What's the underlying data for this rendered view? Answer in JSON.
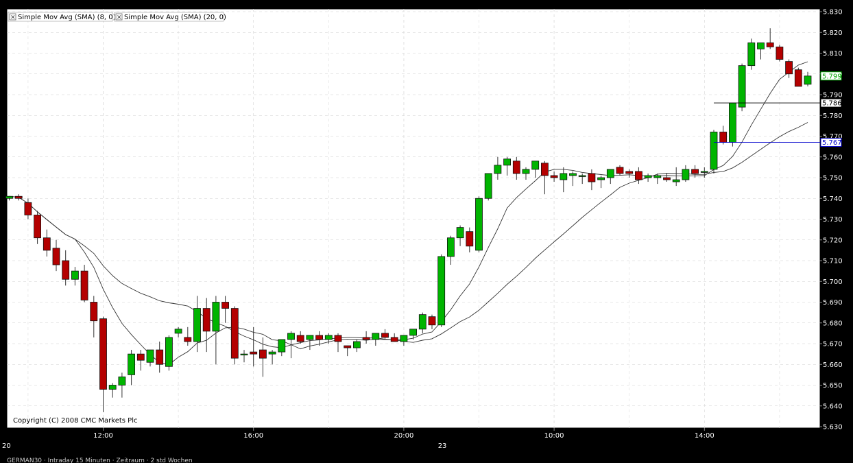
{
  "chart_data": {
    "type": "candlestick",
    "legend": [
      {
        "label": "Simple Mov Avg (SMA) (8, 0)"
      },
      {
        "label": "Simple Mov Avg (SMA) (20, 0)"
      }
    ],
    "copyright": "Copyright (C) 2008 CMC Markets Plc",
    "footer": "GERMAN30 · Intraday 15 Minuten · Zeitraum · 2 std Wochen",
    "ylim": [
      5.63,
      5.83
    ],
    "y_ticks": [
      "5.830",
      "5.820",
      "5.810",
      "5.800",
      "5.790",
      "5.780",
      "5.770",
      "5.760",
      "5.750",
      "5.740",
      "5.730",
      "5.720",
      "5.710",
      "5.700",
      "5.690",
      "5.680",
      "5.670",
      "5.660",
      "5.650",
      "5.640",
      "5.630"
    ],
    "x_time_labels": [
      {
        "label": "12:00",
        "index": 10
      },
      {
        "label": "16:00",
        "index": 26
      },
      {
        "label": "20:00",
        "index": 42
      },
      {
        "label": "10:00",
        "index": 58
      },
      {
        "label": "14:00",
        "index": 74
      }
    ],
    "x_date_labels": [
      {
        "label": "20",
        "index": -0.3
      },
      {
        "label": "23",
        "index": 46.1
      }
    ],
    "price_tags": [
      {
        "label": "5.799",
        "value": 5.799,
        "color": "#00aa00"
      },
      {
        "label": "5.786",
        "value": 5.786,
        "color": "#000000"
      },
      {
        "label": "5.767",
        "value": 5.767,
        "color": "#0000cc"
      }
    ],
    "ref_lines": [
      {
        "value": 5.786,
        "from_index": 75,
        "color": "#000000"
      },
      {
        "value": 5.767,
        "from_index": 75,
        "color": "#0000cc"
      }
    ],
    "candles": [
      [
        5.74,
        5.741,
        5.739,
        5.741
      ],
      [
        5.741,
        5.742,
        5.739,
        5.74
      ],
      [
        5.738,
        5.74,
        5.73,
        5.732
      ],
      [
        5.732,
        5.734,
        5.718,
        5.721
      ],
      [
        5.721,
        5.725,
        5.712,
        5.715
      ],
      [
        5.716,
        5.72,
        5.705,
        5.708
      ],
      [
        5.71,
        5.715,
        5.698,
        5.701
      ],
      [
        5.701,
        5.707,
        5.698,
        5.705
      ],
      [
        5.705,
        5.708,
        5.69,
        5.691
      ],
      [
        5.69,
        5.693,
        5.673,
        5.681
      ],
      [
        5.682,
        5.683,
        5.637,
        5.648
      ],
      [
        5.648,
        5.651,
        5.644,
        5.65
      ],
      [
        5.65,
        5.656,
        5.644,
        5.654
      ],
      [
        5.655,
        5.667,
        5.65,
        5.665
      ],
      [
        5.665,
        5.667,
        5.657,
        5.662
      ],
      [
        5.661,
        5.667,
        5.659,
        5.667
      ],
      [
        5.667,
        5.671,
        5.656,
        5.66
      ],
      [
        5.659,
        5.674,
        5.657,
        5.673
      ],
      [
        5.675,
        5.678,
        5.673,
        5.677
      ],
      [
        5.673,
        5.678,
        5.669,
        5.671
      ],
      [
        5.671,
        5.693,
        5.666,
        5.687
      ],
      [
        5.687,
        5.692,
        5.666,
        5.676
      ],
      [
        5.676,
        5.693,
        5.66,
        5.69
      ],
      [
        5.69,
        5.693,
        5.68,
        5.687
      ],
      [
        5.687,
        5.688,
        5.66,
        5.663
      ],
      [
        5.665,
        5.667,
        5.661,
        5.665
      ],
      [
        5.666,
        5.678,
        5.659,
        5.665
      ],
      [
        5.667,
        5.673,
        5.654,
        5.663
      ],
      [
        5.665,
        5.667,
        5.66,
        5.666
      ],
      [
        5.666,
        5.671,
        5.664,
        5.672
      ],
      [
        5.672,
        5.676,
        5.663,
        5.675
      ],
      [
        5.674,
        5.676,
        5.67,
        5.671
      ],
      [
        5.672,
        5.674,
        5.667,
        5.674
      ],
      [
        5.674,
        5.676,
        5.669,
        5.672
      ],
      [
        5.672,
        5.675,
        5.67,
        5.674
      ],
      [
        5.674,
        5.675,
        5.666,
        5.671
      ],
      [
        5.669,
        5.669,
        5.664,
        5.668
      ],
      [
        5.668,
        5.672,
        5.666,
        5.671
      ],
      [
        5.673,
        5.676,
        5.67,
        5.672
      ],
      [
        5.672,
        5.675,
        5.669,
        5.675
      ],
      [
        5.675,
        5.677,
        5.672,
        5.673
      ],
      [
        5.673,
        5.675,
        5.671,
        5.671
      ],
      [
        5.671,
        5.673,
        5.669,
        5.674
      ],
      [
        5.674,
        5.677,
        5.672,
        5.677
      ],
      [
        5.677,
        5.685,
        5.675,
        5.684
      ],
      [
        5.683,
        5.684,
        5.677,
        5.679
      ],
      [
        5.679,
        5.713,
        5.678,
        5.712
      ],
      [
        5.712,
        5.722,
        5.708,
        5.721
      ],
      [
        5.721,
        5.727,
        5.717,
        5.726
      ],
      [
        5.724,
        5.726,
        5.714,
        5.717
      ],
      [
        5.715,
        5.741,
        5.714,
        5.74
      ],
      [
        5.74,
        5.752,
        5.739,
        5.752
      ],
      [
        5.752,
        5.76,
        5.749,
        5.756
      ],
      [
        5.756,
        5.76,
        5.751,
        5.759
      ],
      [
        5.758,
        5.76,
        5.749,
        5.752
      ],
      [
        5.752,
        5.755,
        5.749,
        5.754
      ],
      [
        5.754,
        5.758,
        5.75,
        5.758
      ],
      [
        5.757,
        5.758,
        5.742,
        5.751
      ],
      [
        5.751,
        5.753,
        5.748,
        5.75
      ],
      [
        5.749,
        5.755,
        5.743,
        5.752
      ],
      [
        5.751,
        5.753,
        5.746,
        5.752
      ],
      [
        5.751,
        5.752,
        5.747,
        5.751
      ],
      [
        5.752,
        5.754,
        5.744,
        5.748
      ],
      [
        5.749,
        5.751,
        5.745,
        5.75
      ],
      [
        5.75,
        5.752,
        5.747,
        5.754
      ],
      [
        5.755,
        5.756,
        5.751,
        5.752
      ],
      [
        5.753,
        5.754,
        5.75,
        5.752
      ],
      [
        5.753,
        5.755,
        5.747,
        5.749
      ],
      [
        5.75,
        5.752,
        5.748,
        5.751
      ],
      [
        5.75,
        5.752,
        5.747,
        5.751
      ],
      [
        5.75,
        5.752,
        5.748,
        5.749
      ],
      [
        5.748,
        5.755,
        5.746,
        5.749
      ],
      [
        5.749,
        5.756,
        5.748,
        5.754
      ],
      [
        5.754,
        5.756,
        5.75,
        5.752
      ],
      [
        5.753,
        5.755,
        5.75,
        5.753
      ],
      [
        5.754,
        5.773,
        5.752,
        5.772
      ],
      [
        5.772,
        5.775,
        5.766,
        5.767
      ],
      [
        5.767,
        5.786,
        5.765,
        5.786
      ],
      [
        5.784,
        5.805,
        5.782,
        5.804
      ],
      [
        5.804,
        5.817,
        5.802,
        5.815
      ],
      [
        5.812,
        5.815,
        5.807,
        5.815
      ],
      [
        5.815,
        5.822,
        5.812,
        5.813
      ],
      [
        5.813,
        5.814,
        5.806,
        5.807
      ],
      [
        5.806,
        5.807,
        5.798,
        5.8
      ],
      [
        5.802,
        5.803,
        5.794,
        5.794
      ],
      [
        5.795,
        5.801,
        5.794,
        5.799
      ]
    ]
  }
}
